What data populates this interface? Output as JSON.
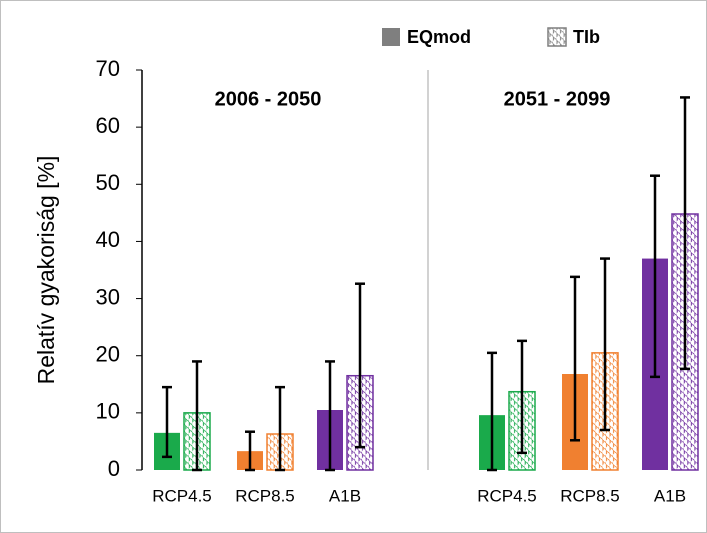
{
  "chart_data": {
    "type": "bar",
    "y_label": "Relatív gyakoriság [%]",
    "ylim": [
      0,
      70
    ],
    "yticks": [
      0,
      10,
      20,
      30,
      40,
      50,
      60,
      70
    ],
    "series": [
      {
        "name": "EQmod",
        "pattern": "solid"
      },
      {
        "name": "TIb",
        "pattern": "hatched"
      }
    ],
    "category_colors": [
      "#1aaa4b",
      "#f08030",
      "#7030a0"
    ],
    "panels": [
      {
        "title": "2006 - 2050",
        "categories": [
          "RCP4.5",
          "RCP8.5",
          "A1B"
        ],
        "values": [
          [
            6.5,
            3.3,
            10.5
          ],
          [
            10,
            6.3,
            16.5
          ]
        ],
        "ranges": [
          [
            [
              2.3,
              14.5
            ],
            [
              0,
              6.7
            ],
            [
              0,
              19
            ]
          ],
          [
            [
              0,
              19
            ],
            [
              0,
              14.5
            ],
            [
              4,
              32.6
            ]
          ]
        ]
      },
      {
        "title": "2051 - 2099",
        "categories": [
          "RCP4.5",
          "RCP8.5",
          "A1B"
        ],
        "values": [
          [
            9.6,
            16.8,
            37
          ],
          [
            13.7,
            20.5,
            44.8
          ]
        ],
        "ranges": [
          [
            [
              0,
              20.5
            ],
            [
              5.2,
              33.8
            ],
            [
              16.3,
              51.5
            ]
          ],
          [
            [
              3,
              22.6
            ],
            [
              7,
              37
            ],
            [
              17.7,
              65.2
            ]
          ]
        ]
      }
    ]
  }
}
